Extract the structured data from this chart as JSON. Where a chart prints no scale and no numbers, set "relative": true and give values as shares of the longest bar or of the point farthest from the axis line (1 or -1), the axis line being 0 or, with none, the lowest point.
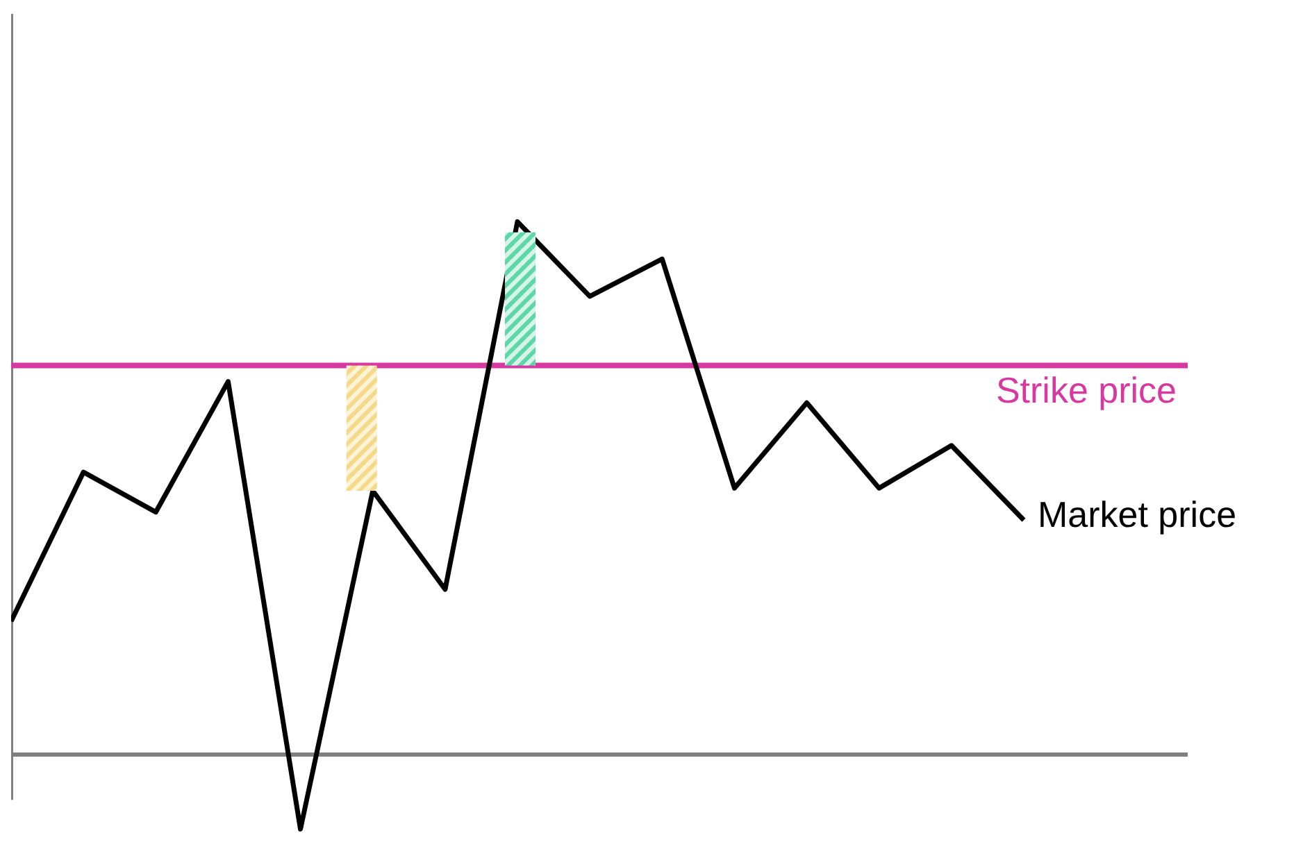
{
  "chart_data": {
    "type": "line",
    "relative": true,
    "tick_labels": false,
    "legend": false,
    "grid": false,
    "marker": "none",
    "line_style": "solid",
    "categories": [
      null,
      null,
      null,
      null,
      null,
      null,
      null,
      null,
      null,
      null,
      null,
      null,
      null,
      null,
      null
    ],
    "series": [
      {
        "name": "Market price",
        "color": "#000000",
        "values": [
          0.25,
          0.53,
          0.455,
          0.7,
          -0.14,
          0.495,
          0.31,
          1,
          0.86,
          0.93,
          0.5,
          0.66,
          0.5,
          0.58,
          0.44
        ]
      }
    ],
    "ref_lines": [
      {
        "axis": "y",
        "value": 0.73,
        "label": "Strike price",
        "color": "#d63aa0"
      }
    ]
  }
}
